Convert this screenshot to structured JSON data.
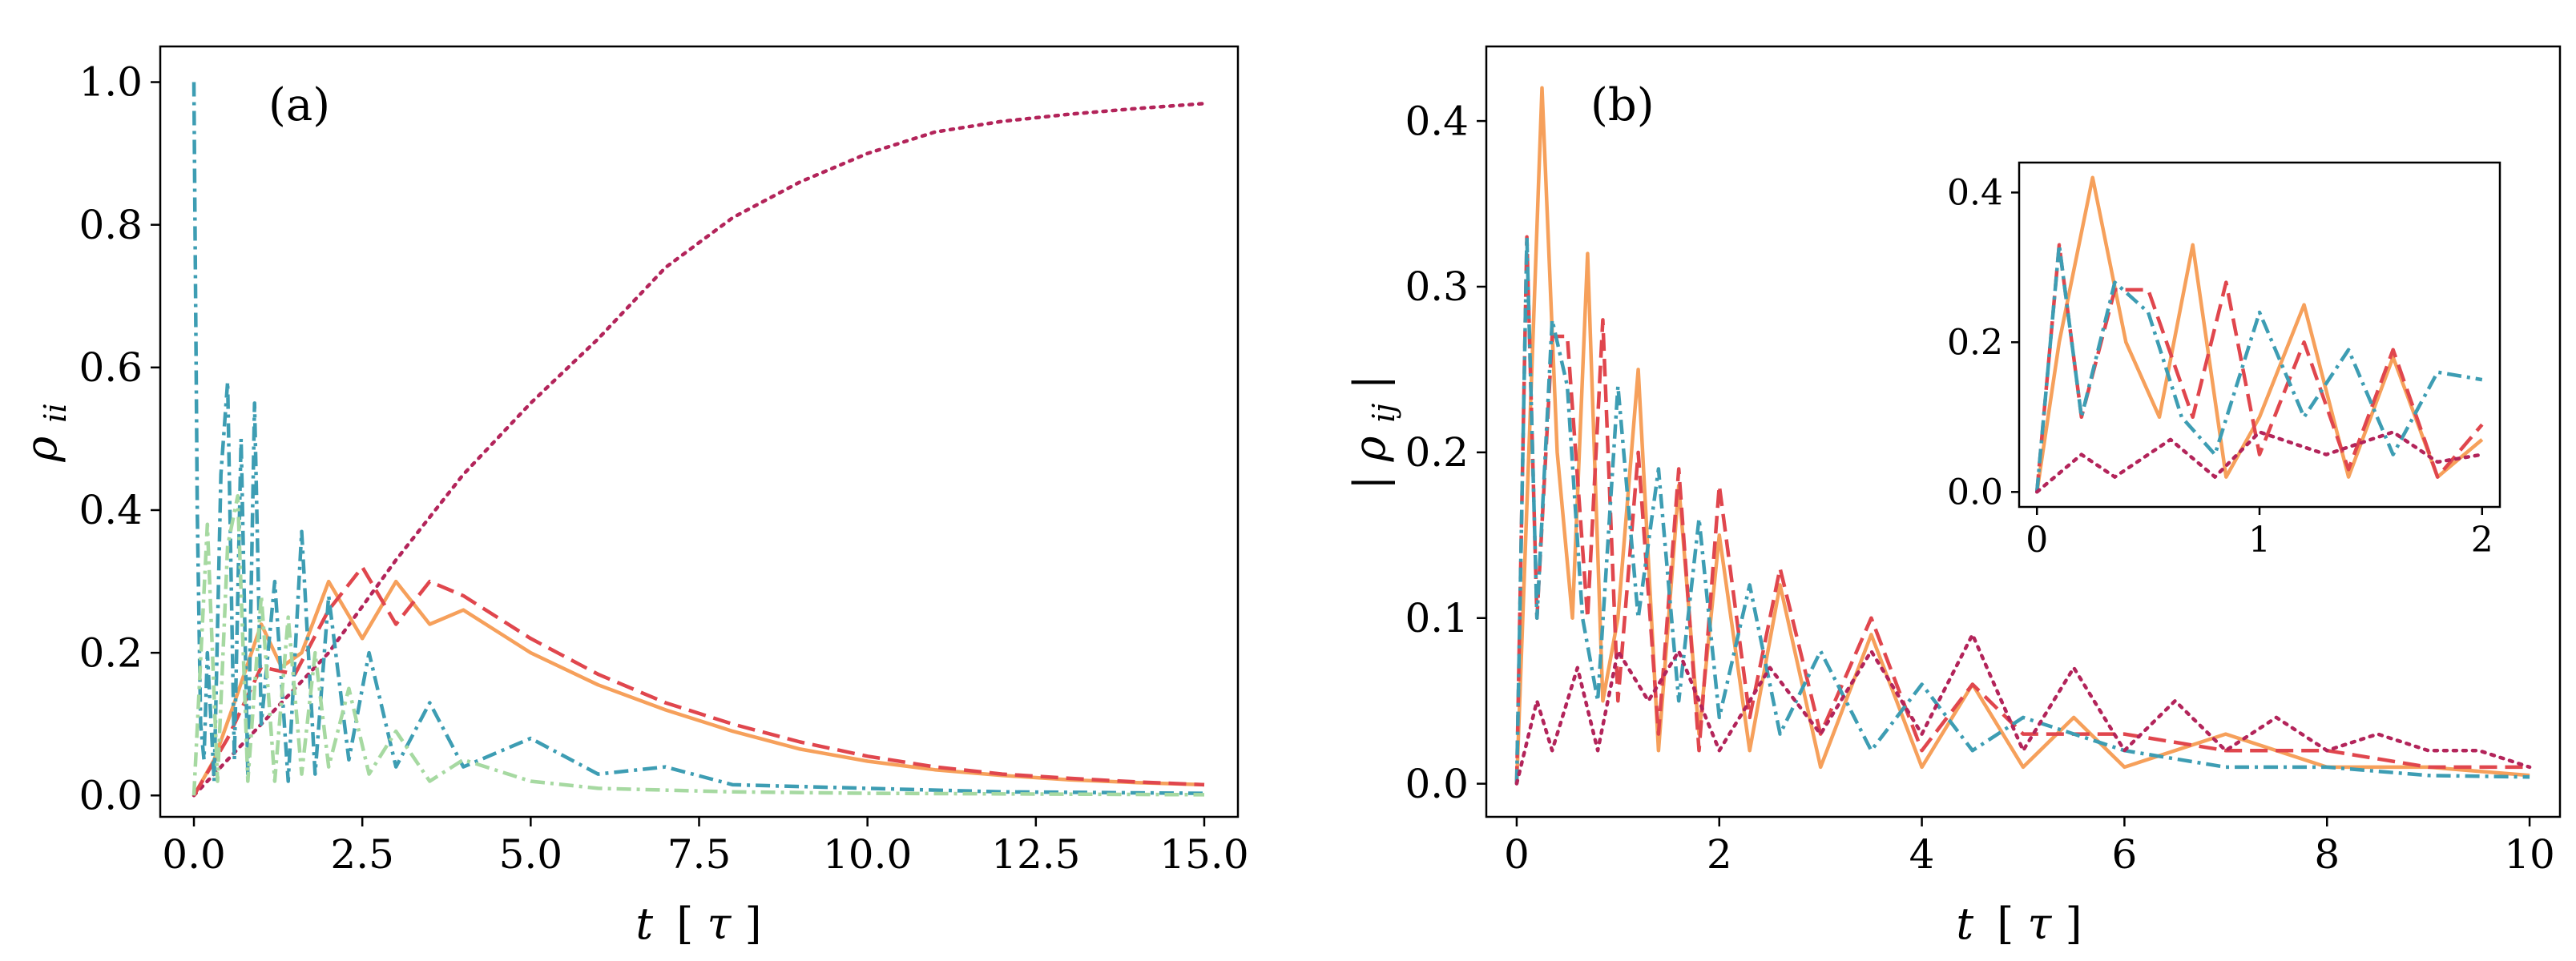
{
  "figure": {
    "panel_a_label": "(a)",
    "panel_b_label": "(b)"
  },
  "colors": {
    "orange": "#f6a05b",
    "red": "#e0464d",
    "teal": "#3d9db3",
    "green": "#a6d9a1",
    "purple": "#b3245a"
  },
  "chart_data": [
    {
      "type": "line",
      "panel": "(a)",
      "xlabel": "t [τ]",
      "ylabel": "ρ_ii",
      "xlabel_parts": {
        "var": "t",
        "lb": "[",
        "unit": "τ",
        "rb": "]"
      },
      "ylabel_parts": {
        "base": "ρ",
        "sub": "ii"
      },
      "xlim": [
        -0.5,
        15.5
      ],
      "ylim": [
        -0.03,
        1.05
      ],
      "xticks": [
        0,
        2.5,
        5,
        7.5,
        10,
        12.5,
        15
      ],
      "xtick_labels": [
        "0.0",
        "2.5",
        "5.0",
        "7.5",
        "10.0",
        "12.5",
        "15.0"
      ],
      "yticks": [
        0,
        0.2,
        0.4,
        0.6,
        0.8,
        1.0
      ],
      "ytick_labels": [
        "0.0",
        "0.2",
        "0.4",
        "0.6",
        "0.8",
        "1.0"
      ],
      "series": [
        {
          "name": "purple",
          "style": "dotted",
          "color": "#b3245a",
          "x": [
            0,
            1,
            2,
            3,
            4,
            5,
            6,
            7,
            8,
            9,
            10,
            11,
            12,
            13,
            14,
            15
          ],
          "y": [
            0.0,
            0.1,
            0.2,
            0.33,
            0.45,
            0.55,
            0.64,
            0.74,
            0.81,
            0.86,
            0.9,
            0.93,
            0.945,
            0.955,
            0.963,
            0.97
          ]
        },
        {
          "name": "orange",
          "style": "solid",
          "color": "#f6a05b",
          "x": [
            0,
            0.3,
            0.6,
            1.0,
            1.3,
            1.6,
            2.0,
            2.5,
            3.0,
            3.5,
            4.0,
            5.0,
            6.0,
            7.0,
            8.0,
            9.0,
            10.0,
            11.0,
            12.0,
            13.0,
            14.0,
            15.0
          ],
          "y": [
            0.0,
            0.05,
            0.13,
            0.24,
            0.18,
            0.2,
            0.3,
            0.22,
            0.3,
            0.24,
            0.26,
            0.2,
            0.155,
            0.12,
            0.09,
            0.065,
            0.048,
            0.036,
            0.028,
            0.022,
            0.018,
            0.015
          ]
        },
        {
          "name": "red",
          "style": "dashed",
          "color": "#e0464d",
          "x": [
            0,
            0.5,
            1.0,
            1.5,
            2.0,
            2.5,
            3.0,
            3.5,
            4.0,
            5.0,
            6.0,
            7.0,
            8.0,
            9.0,
            10.0,
            11.0,
            12.0,
            13.0,
            14.0,
            15.0
          ],
          "y": [
            0.0,
            0.08,
            0.18,
            0.17,
            0.26,
            0.32,
            0.24,
            0.3,
            0.28,
            0.22,
            0.17,
            0.13,
            0.1,
            0.075,
            0.055,
            0.04,
            0.03,
            0.024,
            0.019,
            0.015
          ]
        },
        {
          "name": "teal",
          "style": "dashdot",
          "color": "#3d9db3",
          "x": [
            0,
            0.05,
            0.1,
            0.15,
            0.2,
            0.3,
            0.4,
            0.5,
            0.6,
            0.7,
            0.8,
            0.9,
            1.0,
            1.2,
            1.4,
            1.6,
            1.8,
            2.0,
            2.3,
            2.6,
            3.0,
            3.5,
            4.0,
            5.0,
            6.0,
            7.0,
            8.0,
            10.0,
            12.0,
            15.0
          ],
          "y": [
            1.0,
            0.4,
            0.1,
            0.05,
            0.2,
            0.02,
            0.45,
            0.58,
            0.05,
            0.5,
            0.03,
            0.55,
            0.1,
            0.3,
            0.02,
            0.37,
            0.03,
            0.28,
            0.05,
            0.2,
            0.04,
            0.13,
            0.04,
            0.08,
            0.03,
            0.04,
            0.015,
            0.01,
            0.005,
            0.003
          ]
        },
        {
          "name": "green",
          "style": "dashdot",
          "color": "#a6d9a1",
          "x": [
            0,
            0.2,
            0.35,
            0.5,
            0.65,
            0.8,
            1.0,
            1.2,
            1.4,
            1.6,
            1.8,
            2.0,
            2.3,
            2.6,
            3.0,
            3.5,
            4.0,
            5.0,
            6.0,
            8.0,
            10.0,
            15.0
          ],
          "y": [
            0.0,
            0.38,
            0.02,
            0.35,
            0.42,
            0.02,
            0.28,
            0.02,
            0.25,
            0.03,
            0.2,
            0.04,
            0.15,
            0.03,
            0.09,
            0.02,
            0.05,
            0.02,
            0.01,
            0.005,
            0.003,
            0.001
          ]
        }
      ]
    },
    {
      "type": "line",
      "panel": "(b)",
      "xlabel": "t [τ]",
      "ylabel": "|ρ_ij|",
      "xlabel_parts": {
        "var": "t",
        "lb": "[",
        "unit": "τ",
        "rb": "]"
      },
      "ylabel_parts": {
        "bar": "|",
        "base": "ρ",
        "sub": "ij"
      },
      "xlim": [
        -0.3,
        10.3
      ],
      "ylim": [
        -0.02,
        0.445
      ],
      "xticks": [
        0,
        2,
        4,
        6,
        8,
        10
      ],
      "xtick_labels": [
        "0",
        "2",
        "4",
        "6",
        "8",
        "10"
      ],
      "yticks": [
        0,
        0.1,
        0.2,
        0.3,
        0.4
      ],
      "ytick_labels": [
        "0.0",
        "0.1",
        "0.2",
        "0.3",
        "0.4"
      ],
      "series": [
        {
          "name": "orange",
          "style": "solid",
          "color": "#f6a05b",
          "x": [
            0,
            0.12,
            0.25,
            0.4,
            0.55,
            0.7,
            0.85,
            1.0,
            1.2,
            1.4,
            1.6,
            1.8,
            2.0,
            2.3,
            2.6,
            3.0,
            3.5,
            4.0,
            4.5,
            5.0,
            5.5,
            6.0,
            7.0,
            8.0,
            9.0,
            10.0
          ],
          "y": [
            0.0,
            0.2,
            0.42,
            0.2,
            0.1,
            0.32,
            0.05,
            0.1,
            0.25,
            0.02,
            0.18,
            0.03,
            0.15,
            0.02,
            0.12,
            0.01,
            0.09,
            0.01,
            0.06,
            0.01,
            0.04,
            0.01,
            0.03,
            0.01,
            0.01,
            0.005
          ]
        },
        {
          "name": "red",
          "style": "dashed",
          "color": "#e0464d",
          "x": [
            0,
            0.1,
            0.2,
            0.35,
            0.5,
            0.7,
            0.85,
            1.0,
            1.2,
            1.4,
            1.6,
            1.8,
            2.0,
            2.3,
            2.6,
            3.0,
            3.5,
            4.0,
            4.5,
            5.0,
            6.0,
            7.0,
            8.0,
            9.0,
            10.0
          ],
          "y": [
            0.0,
            0.33,
            0.1,
            0.27,
            0.27,
            0.1,
            0.28,
            0.05,
            0.2,
            0.03,
            0.19,
            0.02,
            0.18,
            0.04,
            0.13,
            0.03,
            0.1,
            0.02,
            0.06,
            0.03,
            0.03,
            0.02,
            0.02,
            0.01,
            0.01
          ]
        },
        {
          "name": "teal",
          "style": "dashdot",
          "color": "#3d9db3",
          "x": [
            0,
            0.1,
            0.2,
            0.35,
            0.5,
            0.65,
            0.8,
            1.0,
            1.2,
            1.4,
            1.6,
            1.8,
            2.0,
            2.3,
            2.6,
            3.0,
            3.5,
            4.0,
            4.5,
            5.0,
            6.0,
            7.0,
            8.0,
            9.0,
            10.0
          ],
          "y": [
            0.0,
            0.33,
            0.1,
            0.28,
            0.24,
            0.1,
            0.05,
            0.24,
            0.1,
            0.19,
            0.05,
            0.16,
            0.04,
            0.12,
            0.03,
            0.08,
            0.02,
            0.06,
            0.02,
            0.04,
            0.02,
            0.01,
            0.01,
            0.005,
            0.004
          ]
        },
        {
          "name": "purple",
          "style": "dotted",
          "color": "#b3245a",
          "x": [
            0,
            0.2,
            0.35,
            0.6,
            0.8,
            1.0,
            1.3,
            1.6,
            2.0,
            2.5,
            3.0,
            3.5,
            4.0,
            4.5,
            5.0,
            5.5,
            6.0,
            6.5,
            7.0,
            7.5,
            8.0,
            8.5,
            9.0,
            9.5,
            10.0
          ],
          "y": [
            0.0,
            0.05,
            0.02,
            0.07,
            0.02,
            0.08,
            0.05,
            0.08,
            0.02,
            0.07,
            0.03,
            0.08,
            0.03,
            0.09,
            0.02,
            0.07,
            0.02,
            0.05,
            0.02,
            0.04,
            0.02,
            0.03,
            0.02,
            0.02,
            0.01
          ]
        }
      ]
    },
    {
      "type": "line",
      "panel": "(b) inset",
      "xlim": [
        -0.08,
        2.08
      ],
      "ylim": [
        -0.02,
        0.44
      ],
      "xticks": [
        0,
        1,
        2
      ],
      "xtick_labels": [
        "0",
        "1",
        "2"
      ],
      "yticks": [
        0,
        0.2,
        0.4
      ],
      "ytick_labels": [
        "0.0",
        "0.2",
        "0.4"
      ],
      "series": [
        {
          "name": "orange",
          "style": "solid",
          "color": "#f6a05b",
          "x": [
            0,
            0.1,
            0.25,
            0.4,
            0.55,
            0.7,
            0.85,
            1.0,
            1.2,
            1.4,
            1.6,
            1.8,
            2.0
          ],
          "y": [
            0.0,
            0.2,
            0.42,
            0.2,
            0.1,
            0.33,
            0.02,
            0.1,
            0.25,
            0.02,
            0.18,
            0.02,
            0.07
          ]
        },
        {
          "name": "red",
          "style": "dashed",
          "color": "#e0464d",
          "x": [
            0,
            0.1,
            0.2,
            0.35,
            0.5,
            0.7,
            0.85,
            1.0,
            1.2,
            1.4,
            1.6,
            1.8,
            2.0
          ],
          "y": [
            0.0,
            0.33,
            0.1,
            0.27,
            0.27,
            0.1,
            0.28,
            0.05,
            0.2,
            0.03,
            0.19,
            0.02,
            0.09
          ]
        },
        {
          "name": "teal",
          "style": "dashdot",
          "color": "#3d9db3",
          "x": [
            0,
            0.1,
            0.2,
            0.35,
            0.5,
            0.65,
            0.8,
            1.0,
            1.2,
            1.4,
            1.6,
            1.8,
            2.0
          ],
          "y": [
            0.0,
            0.33,
            0.1,
            0.28,
            0.24,
            0.1,
            0.05,
            0.24,
            0.1,
            0.19,
            0.05,
            0.16,
            0.15
          ]
        },
        {
          "name": "purple",
          "style": "dotted",
          "color": "#b3245a",
          "x": [
            0,
            0.2,
            0.35,
            0.6,
            0.8,
            1.0,
            1.3,
            1.6,
            1.8,
            2.0
          ],
          "y": [
            0.0,
            0.05,
            0.02,
            0.07,
            0.02,
            0.08,
            0.05,
            0.08,
            0.04,
            0.05
          ]
        }
      ]
    }
  ]
}
